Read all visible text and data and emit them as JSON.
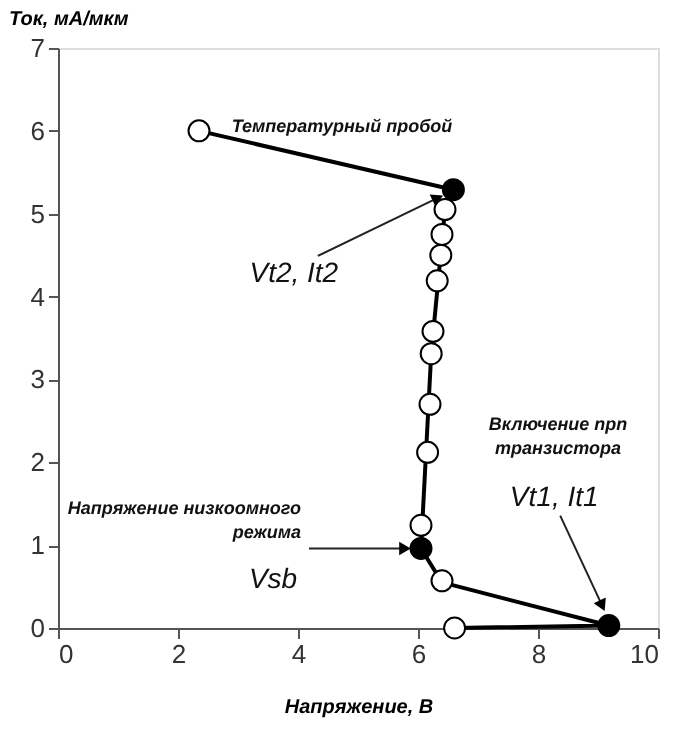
{
  "chart_data": {
    "type": "line",
    "xlabel": "Напряжение, В",
    "ylabel": "Ток, мА/мкм",
    "xlim": [
      0,
      10
    ],
    "xticks": [
      0,
      2,
      4,
      6,
      8,
      10
    ],
    "ylim": [
      0,
      7
    ],
    "yticks": [
      0,
      1,
      2,
      3,
      4,
      5,
      6,
      7
    ],
    "grid": false,
    "series": [
      {
        "color": "#000000",
        "marker": "none",
        "x": [
          6.6,
          9.18,
          6.4,
          6.05,
          6.22,
          6.45,
          6.59,
          2.35
        ],
        "values": [
          0,
          0.03,
          0.55,
          0.96,
          3.31,
          5.05,
          5.29,
          6.0
        ]
      },
      {
        "type": "scatter",
        "color": "#ffffff",
        "marker": "circle",
        "x": [
          6.61,
          6.4,
          6.05,
          6.16,
          6.2,
          6.22,
          6.25,
          6.32,
          6.38,
          6.4,
          6.45,
          2.35
        ],
        "values": [
          0,
          0.57,
          1.24,
          2.12,
          2.7,
          3.31,
          3.58,
          4.19,
          4.5,
          4.75,
          5.05,
          6.0
        ]
      },
      {
        "type": "scatter",
        "color": "#000000",
        "marker": "circle",
        "x": [
          9.18,
          6.05,
          6.59
        ],
        "values": [
          0.03,
          0.96,
          5.29
        ]
      }
    ],
    "annotations": [
      "Температурный пробой",
      {
        "text": "Vt2, It2",
        "x": 6.33,
        "y": 5.19
      },
      {
        "text": "Напряжение низкоомного\nрежима",
        "x": 6.05,
        "y": 0.96
      },
      {
        "text": "Vsb",
        "x": 6.05,
        "y": 0.96
      },
      "Включение npn\nтранзистора",
      {
        "text": "Vt1, It1",
        "x": 9.07,
        "y": 0.27
      }
    ]
  }
}
